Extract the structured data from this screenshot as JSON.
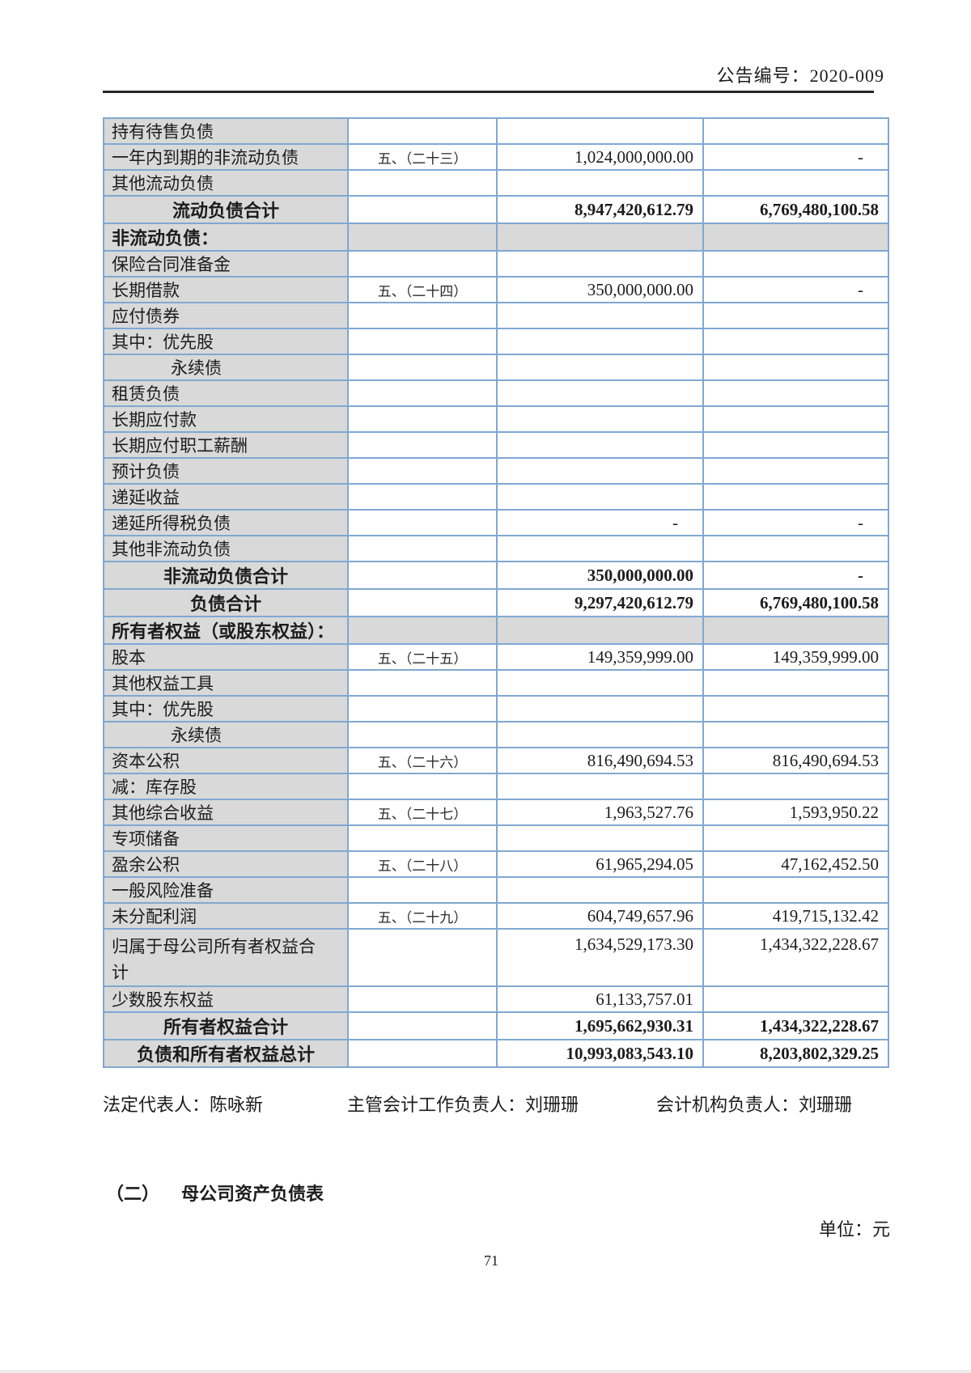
{
  "header": {
    "doc_number": "公告编号：2020-009"
  },
  "balance_sheet": {
    "rows": [
      {
        "label": "持有待售负债",
        "note": "",
        "current": "",
        "previous": "",
        "style": "item"
      },
      {
        "label": "一年内到期的非流动负债",
        "note": "五、（二十三）",
        "current": "1,024,000,000.00",
        "previous": "-",
        "style": "item"
      },
      {
        "label": "其他流动负债",
        "note": "",
        "current": "",
        "previous": "",
        "style": "item"
      },
      {
        "label": "流动负债合计",
        "note": "",
        "current": "8,947,420,612.79",
        "previous": "6,769,480,100.58",
        "style": "total"
      },
      {
        "label": "非流动负债：",
        "note": "",
        "current": "",
        "previous": "",
        "style": "section"
      },
      {
        "label": "保险合同准备金",
        "note": "",
        "current": "",
        "previous": "",
        "style": "item"
      },
      {
        "label": "长期借款",
        "note": "五、（二十四）",
        "current": "350,000,000.00",
        "previous": "-",
        "style": "item"
      },
      {
        "label": "应付债券",
        "note": "",
        "current": "",
        "previous": "",
        "style": "item"
      },
      {
        "label": "其中：优先股",
        "note": "",
        "current": "",
        "previous": "",
        "style": "item"
      },
      {
        "label": "永续债",
        "note": "",
        "current": "",
        "previous": "",
        "style": "indent"
      },
      {
        "label": "租赁负债",
        "note": "",
        "current": "",
        "previous": "",
        "style": "item"
      },
      {
        "label": "长期应付款",
        "note": "",
        "current": "",
        "previous": "",
        "style": "item"
      },
      {
        "label": "长期应付职工薪酬",
        "note": "",
        "current": "",
        "previous": "",
        "style": "item"
      },
      {
        "label": "预计负债",
        "note": "",
        "current": "",
        "previous": "",
        "style": "item"
      },
      {
        "label": "递延收益",
        "note": "",
        "current": "",
        "previous": "",
        "style": "item"
      },
      {
        "label": "递延所得税负债",
        "note": "",
        "current": "-",
        "previous": "-",
        "style": "item"
      },
      {
        "label": "其他非流动负债",
        "note": "",
        "current": "",
        "previous": "",
        "style": "item"
      },
      {
        "label": "非流动负债合计",
        "note": "",
        "current": "350,000,000.00",
        "previous": "-",
        "style": "total"
      },
      {
        "label": "负债合计",
        "note": "",
        "current": "9,297,420,612.79",
        "previous": "6,769,480,100.58",
        "style": "total"
      },
      {
        "label": "所有者权益（或股东权益）：",
        "note": "",
        "current": "",
        "previous": "",
        "style": "section"
      },
      {
        "label": "股本",
        "note": "五、（二十五）",
        "current": "149,359,999.00",
        "previous": "149,359,999.00",
        "style": "item"
      },
      {
        "label": "其他权益工具",
        "note": "",
        "current": "",
        "previous": "",
        "style": "item"
      },
      {
        "label": "其中：优先股",
        "note": "",
        "current": "",
        "previous": "",
        "style": "item"
      },
      {
        "label": "永续债",
        "note": "",
        "current": "",
        "previous": "",
        "style": "indent"
      },
      {
        "label": "资本公积",
        "note": "五、（二十六）",
        "current": "816,490,694.53",
        "previous": "816,490,694.53",
        "style": "item"
      },
      {
        "label": "减：库存股",
        "note": "",
        "current": "",
        "previous": "",
        "style": "item"
      },
      {
        "label": "其他综合收益",
        "note": "五、（二十七）",
        "current": "1,963,527.76",
        "previous": "1,593,950.22",
        "style": "item"
      },
      {
        "label": "专项储备",
        "note": "",
        "current": "",
        "previous": "",
        "style": "item"
      },
      {
        "label": "盈余公积",
        "note": "五、（二十八）",
        "current": "61,965,294.05",
        "previous": "47,162,452.50",
        "style": "item"
      },
      {
        "label": "一般风险准备",
        "note": "",
        "current": "",
        "previous": "",
        "style": "item"
      },
      {
        "label": "未分配利润",
        "note": "五、（二十九）",
        "current": "604,749,657.96",
        "previous": "419,715,132.42",
        "style": "item"
      },
      {
        "label": "归属于母公司所有者权益合计",
        "note": "",
        "current": "1,634,529,173.30",
        "previous": "1,434,322,228.67",
        "style": "wrap"
      },
      {
        "label": "少数股东权益",
        "note": "",
        "current": "61,133,757.01",
        "previous": "",
        "style": "item"
      },
      {
        "label": "所有者权益合计",
        "note": "",
        "current": "1,695,662,930.31",
        "previous": "1,434,322,228.67",
        "style": "total"
      },
      {
        "label": "负债和所有者权益总计",
        "note": "",
        "current": "10,993,083,543.10",
        "previous": "8,203,802,329.25",
        "style": "total"
      }
    ]
  },
  "signatures": {
    "legal_representative": "法定代表人：陈咏新",
    "chief_accounting_officer": "主管会计工作负责人：刘珊珊",
    "accounting_department_head": "会计机构负责人：刘珊珊"
  },
  "next_section": {
    "number": "（二）",
    "title": "母公司资产负债表",
    "unit_label": "单位：元"
  },
  "page_number": "71",
  "colors": {
    "table_border": "#7fa8d2",
    "cell_shade": "#d9d9d9",
    "header_rule": "#262626"
  }
}
